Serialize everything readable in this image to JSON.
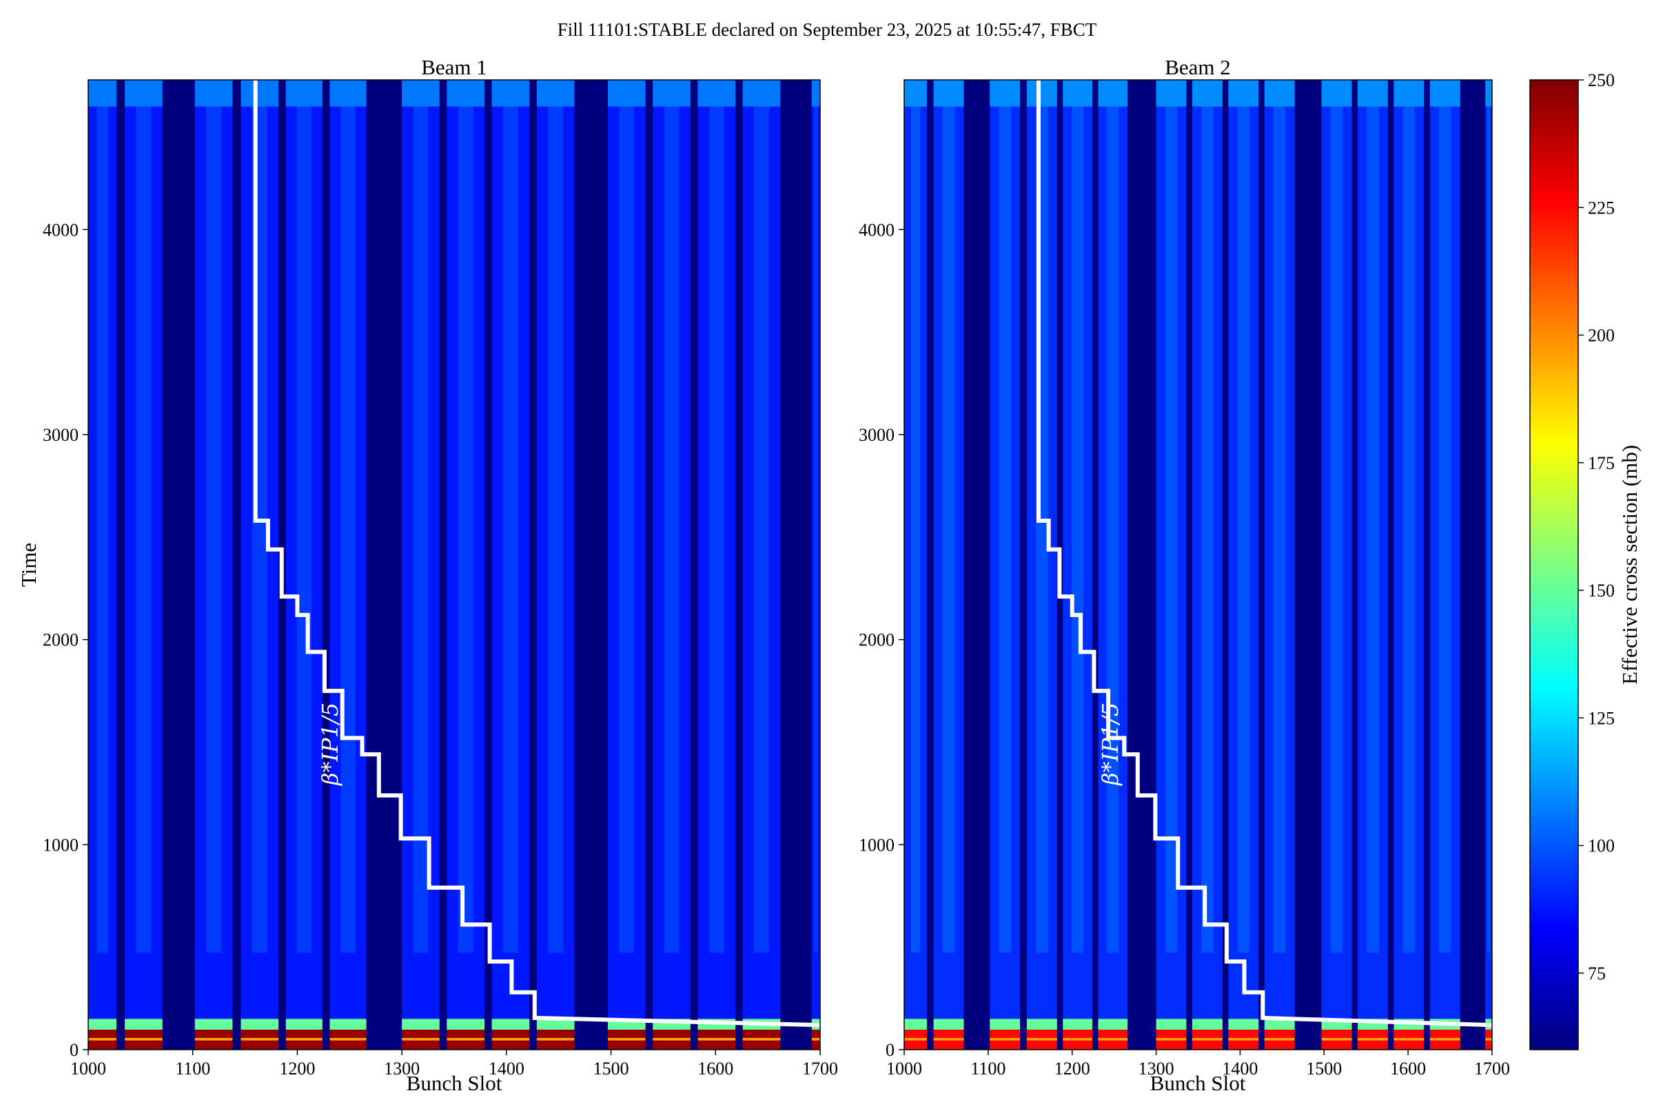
{
  "figure": {
    "suptitle": "Fill 11101:STABLE declared on September 23, 2025 at 10:55:47, FBCT",
    "colorbar_label": "Effective cross section (mb)",
    "colormap": "jet",
    "colormap_stops": [
      "#00007f",
      "#0000ff",
      "#007fff",
      "#00ffff",
      "#7fff7f",
      "#ffff00",
      "#ff7f00",
      "#ff0000",
      "#7f0000"
    ]
  },
  "chart_data": [
    {
      "type": "heatmap",
      "title": "Beam 1",
      "xlabel": "Bunch Slot",
      "ylabel": "Time",
      "xlim": [
        1000,
        1700
      ],
      "ylim": [
        0,
        4730
      ],
      "xticks": [
        1000,
        1100,
        1200,
        1300,
        1400,
        1500,
        1600,
        1700
      ],
      "yticks": [
        0,
        1000,
        2000,
        3000,
        4000
      ],
      "annotation": "β*IP1/5",
      "filled_slot_ranges": [
        [
          1000,
          1027
        ],
        [
          1035,
          1071
        ],
        [
          1102,
          1138
        ],
        [
          1146,
          1182
        ],
        [
          1189,
          1224
        ],
        [
          1231,
          1266
        ],
        [
          1300,
          1336
        ],
        [
          1343,
          1379
        ],
        [
          1386,
          1422
        ],
        [
          1429,
          1465
        ],
        [
          1497,
          1533
        ],
        [
          1540,
          1576
        ],
        [
          1583,
          1619
        ],
        [
          1626,
          1662
        ],
        [
          1692,
          1700
        ]
      ],
      "background_cross_section_mb": 60,
      "bunch_cross_section_mb": 88,
      "initial_cross_section_mb": 245,
      "beta_star_line": [
        [
          1160,
          4730
        ],
        [
          1160,
          2580
        ],
        [
          1172,
          2580
        ],
        [
          1172,
          2440
        ],
        [
          1185,
          2440
        ],
        [
          1185,
          2210
        ],
        [
          1200,
          2210
        ],
        [
          1200,
          2120
        ],
        [
          1210,
          2120
        ],
        [
          1210,
          1940
        ],
        [
          1226,
          1940
        ],
        [
          1226,
          1750
        ],
        [
          1243,
          1750
        ],
        [
          1243,
          1520
        ],
        [
          1262,
          1520
        ],
        [
          1262,
          1440
        ],
        [
          1278,
          1440
        ],
        [
          1278,
          1240
        ],
        [
          1299,
          1240
        ],
        [
          1299,
          1030
        ],
        [
          1326,
          1030
        ],
        [
          1326,
          790
        ],
        [
          1358,
          790
        ],
        [
          1358,
          610
        ],
        [
          1384,
          610
        ],
        [
          1384,
          430
        ],
        [
          1405,
          430
        ],
        [
          1405,
          280
        ],
        [
          1427,
          280
        ],
        [
          1427,
          155
        ],
        [
          1700,
          120
        ]
      ]
    },
    {
      "type": "heatmap",
      "title": "Beam 2",
      "xlabel": "Bunch Slot",
      "ylabel": "",
      "xlim": [
        1000,
        1700
      ],
      "ylim": [
        0,
        4730
      ],
      "xticks": [
        1000,
        1100,
        1200,
        1300,
        1400,
        1500,
        1600,
        1700
      ],
      "yticks": [
        0,
        1000,
        2000,
        3000,
        4000
      ],
      "annotation": "β*IP1/5",
      "filled_slot_ranges": [
        [
          1000,
          1027
        ],
        [
          1035,
          1071
        ],
        [
          1102,
          1138
        ],
        [
          1146,
          1182
        ],
        [
          1189,
          1224
        ],
        [
          1231,
          1266
        ],
        [
          1300,
          1336
        ],
        [
          1343,
          1379
        ],
        [
          1386,
          1422
        ],
        [
          1429,
          1465
        ],
        [
          1497,
          1533
        ],
        [
          1540,
          1576
        ],
        [
          1583,
          1619
        ],
        [
          1626,
          1662
        ],
        [
          1692,
          1700
        ]
      ],
      "background_cross_section_mb": 60,
      "bunch_cross_section_mb": 92,
      "initial_cross_section_mb": 225,
      "beta_star_line": [
        [
          1160,
          4730
        ],
        [
          1160,
          2580
        ],
        [
          1172,
          2580
        ],
        [
          1172,
          2440
        ],
        [
          1185,
          2440
        ],
        [
          1185,
          2210
        ],
        [
          1200,
          2210
        ],
        [
          1200,
          2120
        ],
        [
          1210,
          2120
        ],
        [
          1210,
          1940
        ],
        [
          1226,
          1940
        ],
        [
          1226,
          1750
        ],
        [
          1243,
          1750
        ],
        [
          1243,
          1520
        ],
        [
          1262,
          1520
        ],
        [
          1262,
          1440
        ],
        [
          1278,
          1440
        ],
        [
          1278,
          1240
        ],
        [
          1299,
          1240
        ],
        [
          1299,
          1030
        ],
        [
          1326,
          1030
        ],
        [
          1326,
          790
        ],
        [
          1358,
          790
        ],
        [
          1358,
          610
        ],
        [
          1384,
          610
        ],
        [
          1384,
          430
        ],
        [
          1405,
          430
        ],
        [
          1405,
          280
        ],
        [
          1427,
          280
        ],
        [
          1427,
          155
        ],
        [
          1700,
          120
        ]
      ]
    },
    {
      "type": "colorbar",
      "range": [
        60,
        250
      ],
      "ticks": [
        75,
        100,
        125,
        150,
        175,
        200,
        225,
        250
      ],
      "label": "Effective cross section (mb)"
    }
  ]
}
